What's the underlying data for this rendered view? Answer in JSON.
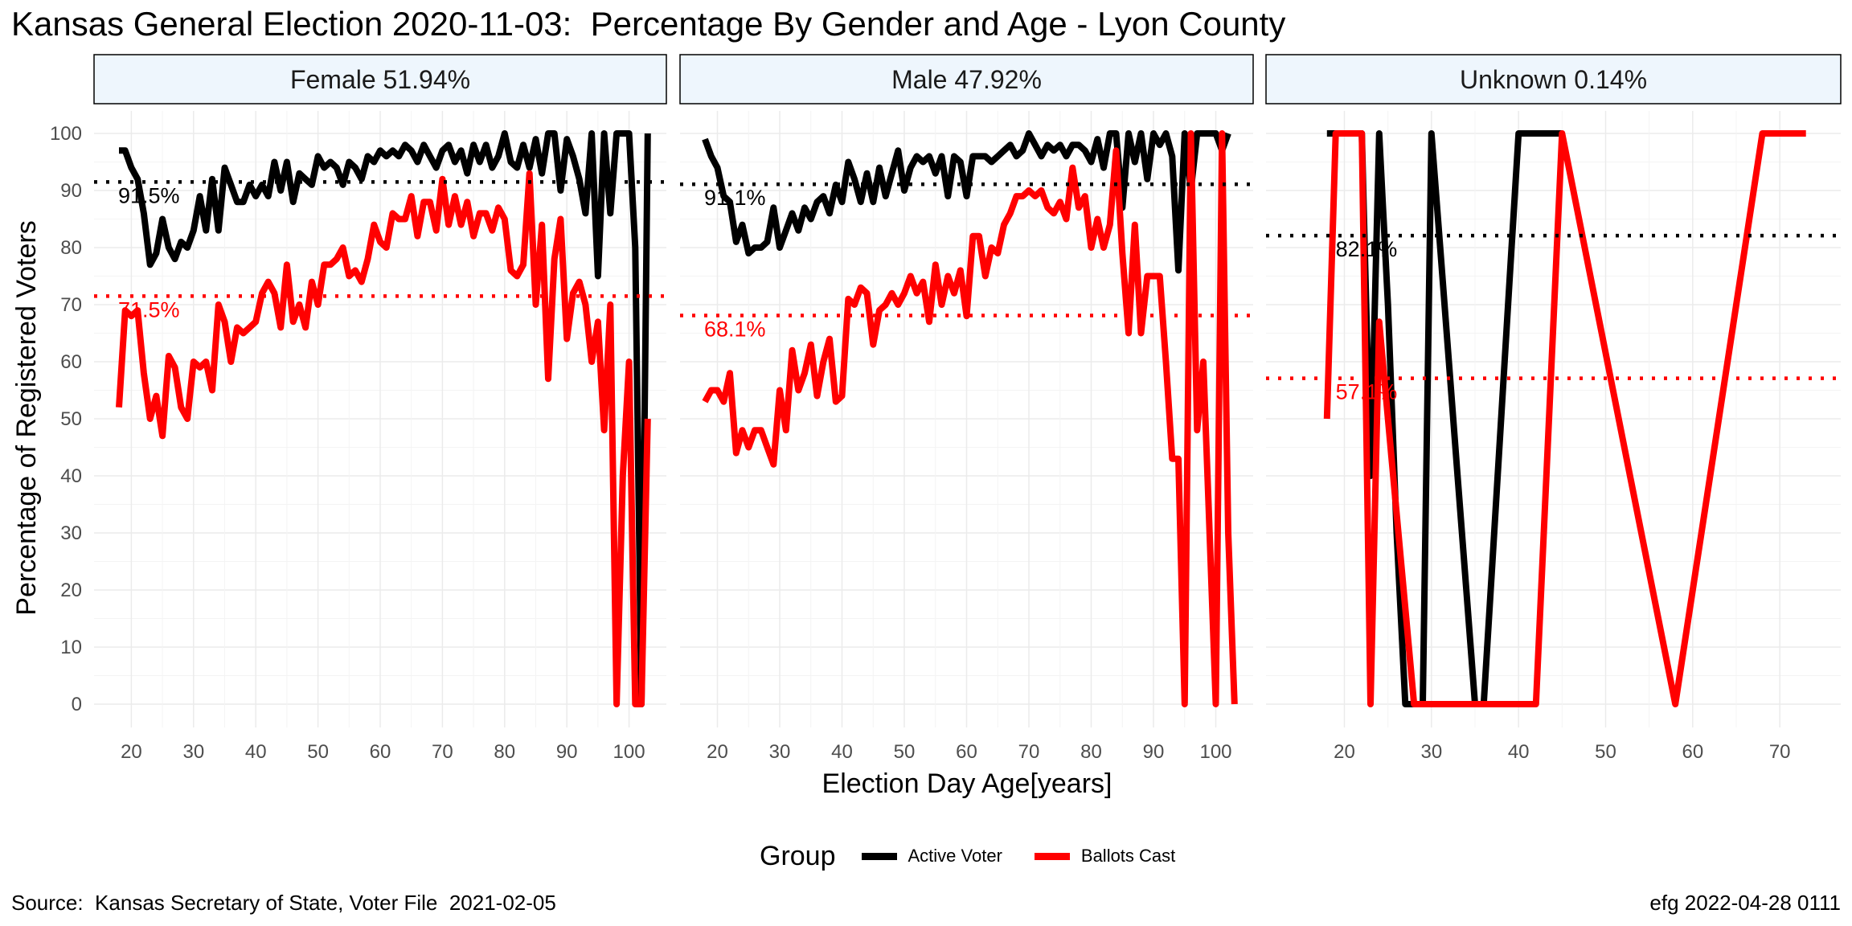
{
  "title": "Kansas General Election 2020-11-03:  Percentage By Gender and Age - Lyon County",
  "source": "Source:  Kansas Secretary of State, Voter File  2021-02-05",
  "stamp": "efg 2022-04-28 0111",
  "colors": {
    "active": "#000000",
    "ballots": "#ff0000",
    "strip_fill": "#eef6fd",
    "grid": "#ebebeb"
  },
  "chart_data": {
    "type": "line",
    "xlabel": "Election Day Age[years]",
    "ylabel": "Percentage of Registered Voters",
    "ylim": [
      0,
      100
    ],
    "yticks": [
      0,
      10,
      20,
      30,
      40,
      50,
      60,
      70,
      80,
      90,
      100
    ],
    "legend": {
      "title": "Group",
      "placement": "bottom",
      "entries": [
        "Active Voter",
        "Ballots Cast"
      ]
    },
    "panels": [
      {
        "label": "Female 51.94%",
        "xlim": [
          14,
          106
        ],
        "xticks": [
          20,
          30,
          40,
          50,
          60,
          70,
          80,
          90,
          100
        ],
        "active_mean": 91.5,
        "active_mean_label": "91.5%",
        "ballots_mean": 71.5,
        "ballots_mean_label": "71.5%",
        "series": [
          {
            "name": "Active Voter",
            "x": [
              18,
              19,
              20,
              21,
              22,
              23,
              24,
              25,
              26,
              27,
              28,
              29,
              30,
              31,
              32,
              33,
              34,
              35,
              36,
              37,
              38,
              39,
              40,
              41,
              42,
              43,
              44,
              45,
              46,
              47,
              48,
              49,
              50,
              51,
              52,
              53,
              54,
              55,
              56,
              57,
              58,
              59,
              60,
              61,
              62,
              63,
              64,
              65,
              66,
              67,
              68,
              69,
              70,
              71,
              72,
              73,
              74,
              75,
              76,
              77,
              78,
              79,
              80,
              81,
              82,
              83,
              84,
              85,
              86,
              87,
              88,
              89,
              90,
              91,
              92,
              93,
              94,
              95,
              96,
              97,
              98,
              99,
              100,
              101,
              102,
              103
            ],
            "y": [
              97,
              97,
              94,
              92,
              86,
              77,
              79,
              85,
              80,
              78,
              81,
              80,
              83,
              89,
              83,
              92,
              83,
              94,
              91,
              88,
              88,
              91,
              89,
              91,
              89,
              95,
              90,
              95,
              88,
              93,
              92,
              91,
              96,
              94,
              95,
              94,
              91,
              95,
              94,
              92,
              96,
              95,
              97,
              96,
              97,
              96,
              98,
              97,
              95,
              98,
              96,
              94,
              97,
              98,
              95,
              97,
              93,
              98,
              95,
              98,
              94,
              96,
              100,
              95,
              94,
              98,
              94,
              99,
              93,
              100,
              100,
              90,
              99,
              96,
              92,
              86,
              100,
              75,
              100,
              86,
              100,
              100,
              100,
              80,
              0,
              100
            ]
          },
          {
            "name": "Ballots Cast",
            "x": [
              18,
              19,
              20,
              21,
              22,
              23,
              24,
              25,
              26,
              27,
              28,
              29,
              30,
              31,
              32,
              33,
              34,
              35,
              36,
              37,
              38,
              39,
              40,
              41,
              42,
              43,
              44,
              45,
              46,
              47,
              48,
              49,
              50,
              51,
              52,
              53,
              54,
              55,
              56,
              57,
              58,
              59,
              60,
              61,
              62,
              63,
              64,
              65,
              66,
              67,
              68,
              69,
              70,
              71,
              72,
              73,
              74,
              75,
              76,
              77,
              78,
              79,
              80,
              81,
              82,
              83,
              84,
              85,
              86,
              87,
              88,
              89,
              90,
              91,
              92,
              93,
              94,
              95,
              96,
              97,
              98,
              99,
              100,
              101,
              102,
              103
            ],
            "y": [
              52,
              69,
              68,
              69,
              58,
              50,
              54,
              47,
              61,
              59,
              52,
              50,
              60,
              59,
              60,
              55,
              70,
              67,
              60,
              66,
              65,
              66,
              67,
              72,
              74,
              72,
              66,
              77,
              67,
              70,
              66,
              74,
              70,
              77,
              77,
              78,
              80,
              75,
              76,
              74,
              78,
              84,
              81,
              80,
              86,
              85,
              85,
              89,
              82,
              88,
              88,
              83,
              92,
              84,
              89,
              84,
              88,
              82,
              86,
              86,
              83,
              87,
              85,
              76,
              75,
              77,
              93,
              70,
              84,
              57,
              78,
              85,
              64,
              72,
              74,
              70,
              60,
              67,
              48,
              70,
              0,
              40,
              60,
              0,
              0,
              50
            ]
          }
        ]
      },
      {
        "label": "Male 47.92%",
        "xlim": [
          14,
          106
        ],
        "xticks": [
          20,
          30,
          40,
          50,
          60,
          70,
          80,
          90,
          100
        ],
        "active_mean": 91.1,
        "active_mean_label": "91.1%",
        "ballots_mean": 68.1,
        "ballots_mean_label": "68.1%",
        "series": [
          {
            "name": "Active Voter",
            "x": [
              18,
              19,
              20,
              21,
              22,
              23,
              24,
              25,
              26,
              27,
              28,
              29,
              30,
              31,
              32,
              33,
              34,
              35,
              36,
              37,
              38,
              39,
              40,
              41,
              42,
              43,
              44,
              45,
              46,
              47,
              48,
              49,
              50,
              51,
              52,
              53,
              54,
              55,
              56,
              57,
              58,
              59,
              60,
              61,
              62,
              63,
              64,
              65,
              66,
              67,
              68,
              69,
              70,
              71,
              72,
              73,
              74,
              75,
              76,
              77,
              78,
              79,
              80,
              81,
              82,
              83,
              84,
              85,
              86,
              87,
              88,
              89,
              90,
              91,
              92,
              93,
              94,
              95,
              96,
              97,
              98,
              99,
              100,
              101,
              102
            ],
            "y": [
              99,
              96,
              94,
              89,
              88,
              81,
              84,
              79,
              80,
              80,
              81,
              87,
              80,
              83,
              86,
              83,
              87,
              85,
              88,
              89,
              86,
              91,
              88,
              95,
              92,
              88,
              93,
              88,
              94,
              89,
              93,
              97,
              90,
              94,
              96,
              95,
              96,
              93,
              96,
              89,
              96,
              95,
              89,
              96,
              96,
              96,
              95,
              96,
              97,
              98,
              96,
              97,
              100,
              98,
              96,
              98,
              97,
              98,
              96,
              98,
              98,
              97,
              95,
              99,
              94,
              100,
              100,
              87,
              100,
              95,
              100,
              92,
              100,
              98,
              100,
              96,
              76,
              100,
              90,
              100,
              100,
              100,
              100,
              97,
              100
            ]
          },
          {
            "name": "Ballots Cast",
            "x": [
              18,
              19,
              20,
              21,
              22,
              23,
              24,
              25,
              26,
              27,
              28,
              29,
              30,
              31,
              32,
              33,
              34,
              35,
              36,
              37,
              38,
              39,
              40,
              41,
              42,
              43,
              44,
              45,
              46,
              47,
              48,
              49,
              50,
              51,
              52,
              53,
              54,
              55,
              56,
              57,
              58,
              59,
              60,
              61,
              62,
              63,
              64,
              65,
              66,
              67,
              68,
              69,
              70,
              71,
              72,
              73,
              74,
              75,
              76,
              77,
              78,
              79,
              80,
              81,
              82,
              83,
              84,
              85,
              86,
              87,
              88,
              89,
              90,
              91,
              92,
              93,
              94,
              95,
              96,
              97,
              98,
              99,
              100,
              101,
              102,
              103
            ],
            "y": [
              53,
              55,
              55,
              53,
              58,
              44,
              48,
              45,
              48,
              48,
              45,
              42,
              55,
              48,
              62,
              55,
              58,
              63,
              54,
              60,
              64,
              53,
              54,
              71,
              70,
              73,
              72,
              63,
              69,
              70,
              72,
              70,
              72,
              75,
              72,
              74,
              67,
              77,
              70,
              75,
              72,
              76,
              68,
              82,
              82,
              75,
              80,
              79,
              84,
              86,
              89,
              89,
              90,
              89,
              90,
              87,
              86,
              88,
              85,
              94,
              87,
              89,
              80,
              85,
              80,
              84,
              97,
              79,
              65,
              84,
              65,
              75,
              75,
              75,
              60,
              43,
              43,
              0,
              100,
              48,
              60,
              30,
              0,
              100,
              30,
              0
            ]
          }
        ]
      },
      {
        "label": "Unknown 0.14%",
        "xlim": [
          11,
          77
        ],
        "xticks": [
          20,
          30,
          40,
          50,
          60,
          70
        ],
        "active_mean": 82.1,
        "active_mean_label": "82.1%",
        "ballots_mean": 57.1,
        "ballots_mean_label": "57.1%",
        "series": [
          {
            "name": "Active Voter",
            "x": [
              18,
              19,
              20,
              21,
              22,
              23,
              24,
              25,
              26,
              27,
              28,
              29,
              30,
              31,
              32,
              33,
              34,
              35,
              36,
              37,
              38,
              39,
              40,
              41,
              42,
              43,
              44,
              45
            ],
            "y": [
              100,
              100,
              100,
              100,
              100,
              40,
              100,
              70,
              30,
              0,
              0,
              0,
              100,
              80,
              60,
              40,
              20,
              0,
              0,
              25,
              50,
              75,
              100,
              100,
              100,
              100,
              100,
              100
            ]
          },
          {
            "name": "Ballots Cast",
            "x": [
              18,
              19,
              20,
              21,
              22,
              23,
              24,
              25,
              28,
              42,
              45,
              58,
              68,
              73
            ],
            "y": [
              50,
              100,
              100,
              100,
              100,
              0,
              67,
              50,
              0,
              0,
              100,
              0,
              100,
              100
            ]
          }
        ]
      }
    ]
  }
}
